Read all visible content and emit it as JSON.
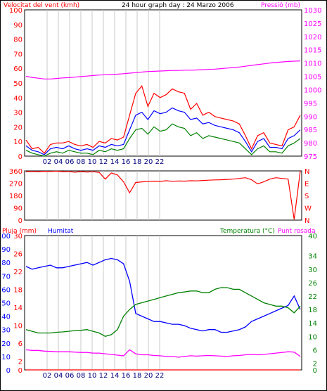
{
  "chart_data": [
    {
      "type": "line",
      "title": "24 hour graph day : 24 Marzo 2006",
      "left_axis_label": "Velocitat del vent (kmh)",
      "right_axis_label": "Pressió (mb)",
      "left_axis": {
        "min": 0,
        "max": 100,
        "ticks": [
          "0",
          "10",
          "20",
          "30",
          "40",
          "50",
          "60",
          "70",
          "80",
          "90",
          "100"
        ]
      },
      "right_axis": {
        "min": 975,
        "max": 1030,
        "ticks": [
          "975",
          "980",
          "985",
          "990",
          "995",
          "1000",
          "1005",
          "1010",
          "1015",
          "1020",
          "1025",
          "1030"
        ]
      },
      "x_ticks": [
        "02",
        "04",
        "06",
        "08",
        "10",
        "12",
        "14",
        "16",
        "18",
        "20",
        "22"
      ],
      "series": [
        {
          "color": "#ff0000",
          "axis": "left",
          "values": [
            11,
            5,
            6,
            2,
            8,
            9,
            9,
            10,
            8,
            7,
            8,
            6,
            10,
            9,
            12,
            11,
            13,
            28,
            43,
            48,
            34,
            43,
            40,
            42,
            46,
            44,
            43,
            32,
            36,
            28,
            30,
            27,
            26,
            25,
            24,
            22,
            14,
            5,
            14,
            16,
            9,
            8,
            7,
            18,
            20,
            28
          ]
        },
        {
          "color": "#0000ff",
          "axis": "left",
          "values": [
            7,
            4,
            3,
            1,
            5,
            6,
            5,
            7,
            5,
            4,
            5,
            4,
            7,
            6,
            8,
            7,
            8,
            18,
            28,
            30,
            25,
            31,
            29,
            30,
            33,
            31,
            30,
            25,
            26,
            22,
            23,
            21,
            20,
            19,
            18,
            16,
            10,
            3,
            10,
            12,
            6,
            6,
            5,
            12,
            14,
            18
          ]
        },
        {
          "color": "#008000",
          "axis": "left",
          "values": [
            4,
            2,
            1,
            0,
            2,
            3,
            2,
            4,
            3,
            2,
            2,
            1,
            4,
            3,
            5,
            4,
            5,
            12,
            18,
            19,
            15,
            20,
            17,
            18,
            22,
            20,
            19,
            14,
            16,
            12,
            14,
            13,
            12,
            11,
            10,
            9,
            5,
            1,
            5,
            7,
            3,
            3,
            2,
            7,
            9,
            12
          ]
        },
        {
          "color": "#ff00ff",
          "axis": "right",
          "values": [
            1005.0,
            1004.6,
            1004.3,
            1004.0,
            1004.0,
            1004.2,
            1004.4,
            1004.5,
            1004.7,
            1004.9,
            1005.1,
            1005.3,
            1005.5,
            1005.6,
            1005.7,
            1005.8,
            1006.0,
            1006.2,
            1006.4,
            1006.6,
            1006.8,
            1006.9,
            1007.0,
            1007.1,
            1007.2,
            1007.2,
            1007.3,
            1007.3,
            1007.4,
            1007.5,
            1007.6,
            1007.7,
            1007.9,
            1008.1,
            1008.3,
            1008.5,
            1008.8,
            1009.1,
            1009.4,
            1009.7,
            1010.0,
            1010.2,
            1010.4,
            1010.6,
            1010.7,
            1010.8
          ]
        }
      ]
    },
    {
      "type": "line",
      "left_axis": {
        "min": 0,
        "max": 360,
        "ticks": [
          "0",
          "90",
          "180",
          "270",
          "360"
        ]
      },
      "right_axis_ticks": [
        "N",
        "E",
        "S",
        "W",
        "N"
      ],
      "series": [
        {
          "color": "#ff0000",
          "values": [
            355,
            356,
            355,
            357,
            356,
            358,
            355,
            356,
            350,
            355,
            352,
            354,
            349,
            300,
            345,
            330,
            280,
            200,
            275,
            280,
            282,
            285,
            283,
            288,
            284,
            286,
            285,
            288,
            287,
            290,
            292,
            294,
            295,
            298,
            300,
            305,
            310,
            295,
            265,
            280,
            300,
            310,
            305,
            300,
            5,
            360
          ]
        }
      ]
    },
    {
      "type": "line",
      "left_axis_label_1": "Pluja (mm)",
      "left_axis_label_2": "Humitat",
      "right_axis_label_1": "Temperatura (°C)",
      "right_axis_label_2": "Punt rosada",
      "left_outer_axis": {
        "min": 0,
        "max": 100,
        "ticks": [
          "0",
          "10",
          "20",
          "30",
          "40",
          "50",
          "60",
          "70",
          "80",
          "90",
          "100"
        ]
      },
      "left_inner_axis": {
        "min": 0,
        "max": 30,
        "ticks": [
          "0",
          "2",
          "6",
          "10",
          "14",
          "18",
          "22",
          "26",
          "30"
        ]
      },
      "right_axis": {
        "min": 0,
        "max": 40,
        "ticks": [
          "0",
          "2",
          "6",
          "10",
          "14",
          "18",
          "22",
          "26",
          "30",
          "34",
          "40"
        ]
      },
      "x_ticks": [
        "02",
        "04",
        "06",
        "08",
        "10",
        "12",
        "14",
        "16",
        "18",
        "20",
        "22"
      ],
      "series": [
        {
          "color": "#0000ff",
          "axis": "left_outer",
          "values": [
            77,
            75,
            76,
            77,
            78,
            76,
            76,
            77,
            78,
            79,
            80,
            78,
            80,
            82,
            83,
            82,
            79,
            66,
            42,
            40,
            38,
            36,
            36,
            35,
            34,
            34,
            33,
            31,
            30,
            29,
            30,
            30,
            28,
            28,
            29,
            30,
            32,
            36,
            38,
            40,
            42,
            44,
            46,
            48,
            55,
            45
          ]
        },
        {
          "color": "#008000",
          "axis": "right",
          "values": [
            12,
            11.5,
            11,
            11,
            11,
            11.2,
            11.3,
            11.5,
            11.7,
            11.8,
            12,
            11.5,
            11,
            10,
            10.5,
            12,
            16,
            18,
            19.5,
            20,
            20.5,
            21,
            21.5,
            22,
            22.5,
            23,
            23.2,
            23.5,
            23.5,
            23,
            23,
            24,
            24.5,
            24.5,
            24,
            24,
            23,
            22,
            21,
            20,
            19.5,
            19,
            19,
            18.5,
            17,
            19
          ]
        },
        {
          "color": "#ff00ff",
          "axis": "right",
          "values": [
            6,
            5.8,
            5.8,
            5.6,
            5.5,
            5.4,
            5.4,
            5.4,
            5.3,
            5.2,
            5.2,
            5,
            5,
            4.8,
            4.6,
            4.4,
            4.2,
            6,
            4.8,
            4.5,
            4.5,
            4.3,
            4.2,
            4,
            4,
            3.8,
            4,
            4.2,
            4.1,
            4.2,
            4.3,
            4.2,
            4.1,
            4,
            4.2,
            4.3,
            4.5,
            4.6,
            4.5,
            4.6,
            4.8,
            5,
            5.2,
            5.4,
            5.3,
            4
          ]
        },
        {
          "color": "#ff0000",
          "axis": "left_outer",
          "values": [
            0,
            0,
            0,
            0,
            0,
            0,
            0,
            0,
            0,
            0,
            0,
            0,
            0,
            0,
            0,
            0,
            0,
            0,
            0,
            0,
            0,
            0,
            0,
            0,
            0,
            0,
            0,
            0,
            0,
            0,
            0,
            0,
            0,
            0,
            0,
            0,
            0,
            0,
            0,
            0,
            0,
            0,
            0,
            0,
            0,
            0
          ]
        }
      ]
    }
  ]
}
